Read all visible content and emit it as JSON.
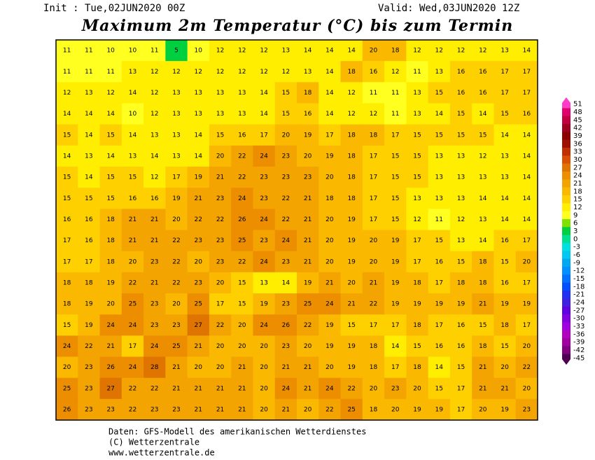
{
  "header": {
    "init": "Init : Tue,02JUN2020 00Z",
    "valid": "Valid: Wed,03JUN2020 12Z",
    "title": "Maximum 2m Temperatur (°C) bis zum Termin"
  },
  "map": {
    "rows": [
      [
        11,
        11,
        10,
        10,
        11,
        5,
        10,
        12,
        12,
        12,
        13,
        14,
        14,
        14,
        20,
        18,
        12,
        12,
        12,
        12,
        13,
        14
      ],
      [
        11,
        11,
        11,
        13,
        12,
        12,
        12,
        12,
        12,
        12,
        12,
        13,
        14,
        18,
        16,
        12,
        11,
        13,
        16,
        16,
        17,
        17
      ],
      [
        12,
        13,
        12,
        14,
        12,
        13,
        13,
        13,
        13,
        14,
        15,
        18,
        14,
        12,
        11,
        11,
        13,
        15,
        16,
        16,
        17,
        17
      ],
      [
        14,
        14,
        14,
        10,
        12,
        13,
        13,
        13,
        13,
        14,
        15,
        16,
        14,
        12,
        12,
        11,
        13,
        14,
        15,
        14,
        15,
        16
      ],
      [
        15,
        14,
        15,
        14,
        13,
        13,
        14,
        15,
        16,
        17,
        20,
        19,
        17,
        18,
        18,
        17,
        15,
        15,
        15,
        15,
        14,
        14
      ],
      [
        14,
        13,
        14,
        13,
        14,
        13,
        14,
        20,
        22,
        24,
        23,
        20,
        19,
        18,
        17,
        15,
        15,
        13,
        13,
        12,
        13,
        14
      ],
      [
        15,
        14,
        15,
        15,
        12,
        17,
        19,
        21,
        22,
        23,
        23,
        23,
        20,
        18,
        17,
        15,
        15,
        13,
        13,
        13,
        13,
        14
      ],
      [
        15,
        15,
        15,
        16,
        16,
        19,
        21,
        23,
        24,
        23,
        22,
        21,
        18,
        18,
        17,
        15,
        13,
        13,
        13,
        14,
        14,
        14
      ],
      [
        16,
        16,
        18,
        21,
        21,
        20,
        22,
        22,
        26,
        24,
        22,
        21,
        20,
        19,
        17,
        15,
        12,
        11,
        12,
        13,
        14,
        14
      ],
      [
        17,
        16,
        18,
        21,
        21,
        22,
        23,
        23,
        25,
        23,
        24,
        21,
        20,
        19,
        20,
        19,
        17,
        15,
        13,
        14,
        16,
        17
      ],
      [
        17,
        17,
        18,
        20,
        23,
        22,
        20,
        23,
        22,
        24,
        23,
        21,
        20,
        19,
        20,
        19,
        17,
        16,
        15,
        18,
        15,
        20
      ],
      [
        18,
        18,
        19,
        22,
        21,
        22,
        23,
        20,
        15,
        13,
        14,
        19,
        21,
        20,
        21,
        19,
        18,
        17,
        18,
        18,
        16,
        17
      ],
      [
        18,
        19,
        20,
        25,
        23,
        20,
        25,
        17,
        15,
        19,
        23,
        25,
        24,
        21,
        22,
        19,
        19,
        19,
        19,
        21,
        19,
        19
      ],
      [
        15,
        19,
        24,
        24,
        23,
        23,
        27,
        22,
        20,
        24,
        26,
        22,
        19,
        15,
        17,
        17,
        18,
        17,
        16,
        15,
        18,
        17
      ],
      [
        24,
        22,
        21,
        17,
        24,
        25,
        21,
        20,
        20,
        20,
        23,
        20,
        19,
        19,
        18,
        14,
        15,
        16,
        16,
        18,
        15,
        20
      ],
      [
        20,
        23,
        26,
        24,
        28,
        21,
        20,
        20,
        21,
        20,
        21,
        21,
        20,
        19,
        18,
        17,
        18,
        14,
        15,
        21,
        20,
        22
      ],
      [
        25,
        23,
        27,
        22,
        22,
        21,
        21,
        21,
        21,
        20,
        24,
        21,
        24,
        22,
        20,
        23,
        20,
        15,
        17,
        21,
        21,
        20
      ],
      [
        26,
        23,
        23,
        22,
        23,
        23,
        21,
        21,
        21,
        20,
        21,
        20,
        22,
        25,
        18,
        20,
        19,
        19,
        17,
        20,
        19,
        23
      ]
    ]
  },
  "legend": {
    "items": [
      {
        "value": 51,
        "color": "#ff3cc8"
      },
      {
        "value": 48,
        "color": "#e0006e"
      },
      {
        "value": 45,
        "color": "#c00040"
      },
      {
        "value": 42,
        "color": "#a00020"
      },
      {
        "value": 39,
        "color": "#8c0000"
      },
      {
        "value": 36,
        "color": "#a01000"
      },
      {
        "value": 33,
        "color": "#c03000"
      },
      {
        "value": 30,
        "color": "#d85000"
      },
      {
        "value": 27,
        "color": "#e07400"
      },
      {
        "value": 24,
        "color": "#ec8e00"
      },
      {
        "value": 21,
        "color": "#f4a400"
      },
      {
        "value": 18,
        "color": "#fab800"
      },
      {
        "value": 15,
        "color": "#ffd000"
      },
      {
        "value": 12,
        "color": "#ffee00"
      },
      {
        "value": 9,
        "color": "#ffff20"
      },
      {
        "value": 6,
        "color": "#80e000"
      },
      {
        "value": 3,
        "color": "#00d040"
      },
      {
        "value": 0,
        "color": "#00e090"
      },
      {
        "value": -3,
        "color": "#00e0e0"
      },
      {
        "value": -6,
        "color": "#00c8f0"
      },
      {
        "value": -9,
        "color": "#00a8f0"
      },
      {
        "value": -12,
        "color": "#0090ff"
      },
      {
        "value": -15,
        "color": "#0070ff"
      },
      {
        "value": -18,
        "color": "#0050ff"
      },
      {
        "value": -21,
        "color": "#2030f0"
      },
      {
        "value": -24,
        "color": "#4020e0"
      },
      {
        "value": -27,
        "color": "#6000e0"
      },
      {
        "value": -30,
        "color": "#8000e0"
      },
      {
        "value": -33,
        "color": "#a000e0"
      },
      {
        "value": -36,
        "color": "#b000c0"
      },
      {
        "value": -39,
        "color": "#a000a0"
      },
      {
        "value": -42,
        "color": "#800080"
      },
      {
        "value": -45,
        "color": "#500050"
      }
    ]
  },
  "footer": {
    "lines": [
      "Daten: GFS-Modell des amerikanischen Wetterdienstes",
      "(C) Wetterzentrale",
      "www.wetterzentrale.de"
    ]
  }
}
